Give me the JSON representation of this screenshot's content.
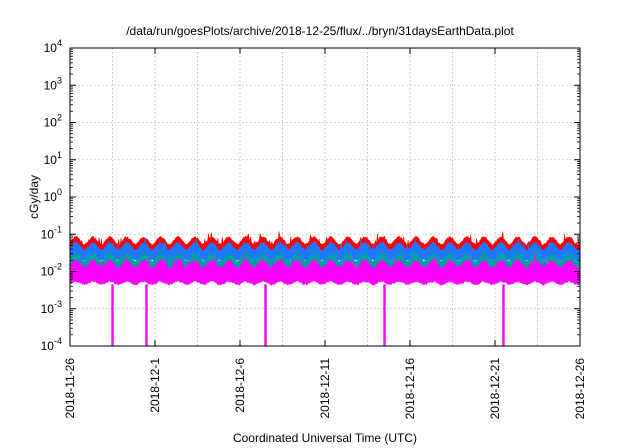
{
  "chart_data": {
    "type": "line",
    "title": "/data/run/goesPlots/archive/2018-12-25/flux/../bryn/31daysEarthData.plot",
    "xlabel": "Coordinated Universal Time (UTC)",
    "ylabel": "cGy/day",
    "yscale": "log",
    "ylim": [
      0.0001,
      10000
    ],
    "xlim": [
      "2018-11-26",
      "2018-12-26"
    ],
    "grid": true,
    "legend": "none",
    "x_ticks": [
      "2018-11-26",
      "2018-12-1",
      "2018-12-6",
      "2018-12-11",
      "2018-12-16",
      "2018-12-21",
      "2018-12-26"
    ],
    "y_ticks": [
      {
        "base": "10",
        "exp": "-4"
      },
      {
        "base": "10",
        "exp": "-3"
      },
      {
        "base": "10",
        "exp": "-2"
      },
      {
        "base": "10",
        "exp": "-1"
      },
      {
        "base": "10",
        "exp": "0"
      },
      {
        "base": "10",
        "exp": "1"
      },
      {
        "base": "10",
        "exp": "2"
      },
      {
        "base": "10",
        "exp": "3"
      },
      {
        "base": "10",
        "exp": "4"
      }
    ],
    "series": [
      {
        "color": "#ff0000",
        "typical_low": 0.035,
        "typical_high": 0.085
      },
      {
        "color": "#1f77ff",
        "typical_low": 0.02,
        "typical_high": 0.06
      },
      {
        "color": "#00a0a0",
        "typical_low": 0.012,
        "typical_high": 0.03
      },
      {
        "color": "#ff00ff",
        "typical_low": 0.0045,
        "typical_high": 0.02,
        "dropouts": [
          "2018-11-28",
          "2018-11-30",
          "2018-12-7",
          "2018-12-14",
          "2018-12-21"
        ]
      }
    ]
  }
}
